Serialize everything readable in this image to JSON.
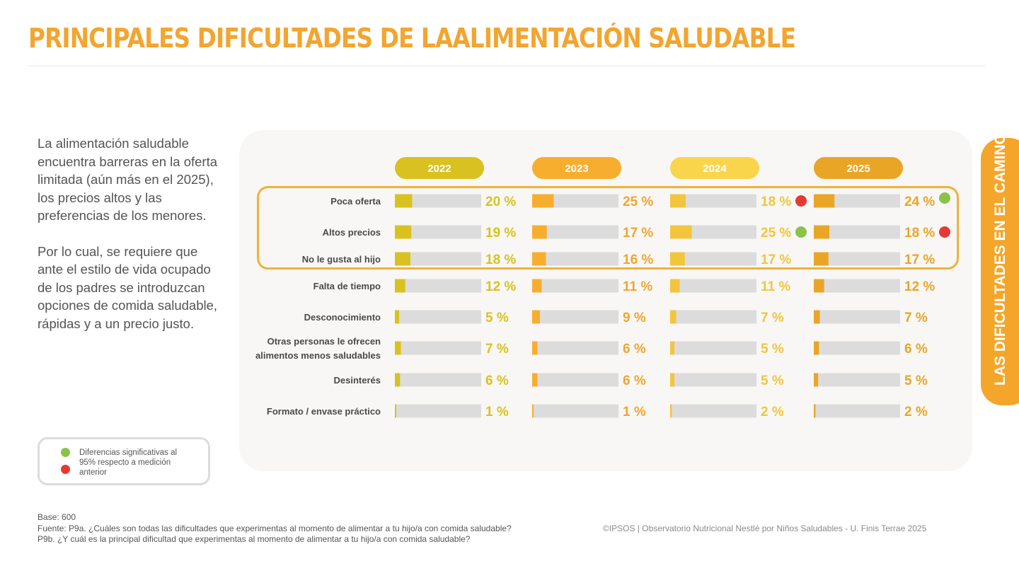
{
  "title": "PRINCIPALES DIFICULTADES DE LAALIMENTACIÓN SALUDABLE",
  "side_tab": "LAS DIFICULTADES EN EL CAMINO",
  "intro": {
    "p1": "La alimentación saludable encuentra barreras en la oferta limitada (aún más en el 2025), los precios altos y las preferencias de los menores.",
    "p2": "Por lo cual, se requiere que ante el estilo de vida ocupado de los padres se introduzcan opciones de comida saludable, rápidas y a un precio justo."
  },
  "legend": {
    "label": "Diferencias significativas al 95% respecto a medición anterior",
    "up_color": "#8BC34A",
    "down_color": "#E53935"
  },
  "footer": {
    "base": "Base: 600",
    "fuente": "Fuente: P9a. ¿Cuáles son todas las dificultades que experimentas al momento de alimentar a tu hijo/a con comida saludable?",
    "p9b": "P9b. ¿Y cuál es la principal dificultad que experimentas al momento de alimentar a tu hijo/a con comida saludable?"
  },
  "credits": "©IPSOS | Observatorio Nutricional Nestlé por Niños Saludables - U. Finis Terrae 2025",
  "chart_data": {
    "type": "bar",
    "unit": "%",
    "categories": [
      "Poca oferta",
      "Altos precios",
      "No le gusta al hijo",
      "Falta de tiempo",
      "Desconocimiento",
      "Otras personas le ofrecen alimentos menos saludables",
      "Desinterés",
      "Formato / envase práctico"
    ],
    "category_lines": [
      [
        "Poca oferta"
      ],
      [
        "Altos precios"
      ],
      [
        "No le gusta al hijo"
      ],
      [
        "Falta de tiempo"
      ],
      [
        "Desconocimiento"
      ],
      [
        "Otras personas le ofrecen",
        "alimentos menos saludables"
      ],
      [
        "Desinterés"
      ],
      [
        "Formato / envase práctico"
      ]
    ],
    "ylim": [
      0,
      100
    ],
    "highlighted_categories": [
      "Poca oferta",
      "Altos precios",
      "No le gusta al hijo"
    ],
    "series": [
      {
        "name": "2022",
        "color": "#D9C21F",
        "header_color": "#D9C21F",
        "text_color": "#D9C21F",
        "values": [
          20,
          19,
          18,
          12,
          5,
          7,
          6,
          1
        ],
        "labels": [
          "20 %",
          "19 %",
          "18 %",
          "12 %",
          "5 %",
          "7 %",
          "6 %",
          "1 %"
        ],
        "significance": [
          null,
          null,
          null,
          null,
          null,
          null,
          null,
          null
        ]
      },
      {
        "name": "2023",
        "color": "#F7AE2F",
        "header_color": "#F7AE2F",
        "text_color": "#F2A530",
        "values": [
          25,
          17,
          16,
          11,
          9,
          6,
          6,
          1
        ],
        "labels": [
          "25 %",
          "17 %",
          "16 %",
          "11 %",
          "9 %",
          "6 %",
          "6 %",
          "1 %"
        ],
        "significance": [
          null,
          null,
          null,
          null,
          null,
          null,
          null,
          null
        ]
      },
      {
        "name": "2024",
        "color": "#F2C53D",
        "header_color": "#F9D54C",
        "text_color": "#F2C53D",
        "values": [
          18,
          25,
          17,
          11,
          7,
          5,
          5,
          2
        ],
        "labels": [
          "18 %",
          "25 %",
          "17 %",
          "11 %",
          "7 %",
          "5 %",
          "5 %",
          "2 %"
        ],
        "significance": [
          "down",
          "up",
          null,
          null,
          null,
          null,
          null,
          null
        ]
      },
      {
        "name": "2025",
        "color": "#E9A626",
        "header_color": "#E9A626",
        "text_color": "#E9A626",
        "values": [
          24,
          18,
          17,
          12,
          7,
          6,
          5,
          2
        ],
        "labels": [
          "24 %",
          "18 %",
          "17 %",
          "12 %",
          "7 %",
          "6 %",
          "5 %",
          "2 %"
        ],
        "significance": [
          "up",
          "down",
          null,
          null,
          null,
          null,
          null,
          null
        ]
      }
    ]
  }
}
